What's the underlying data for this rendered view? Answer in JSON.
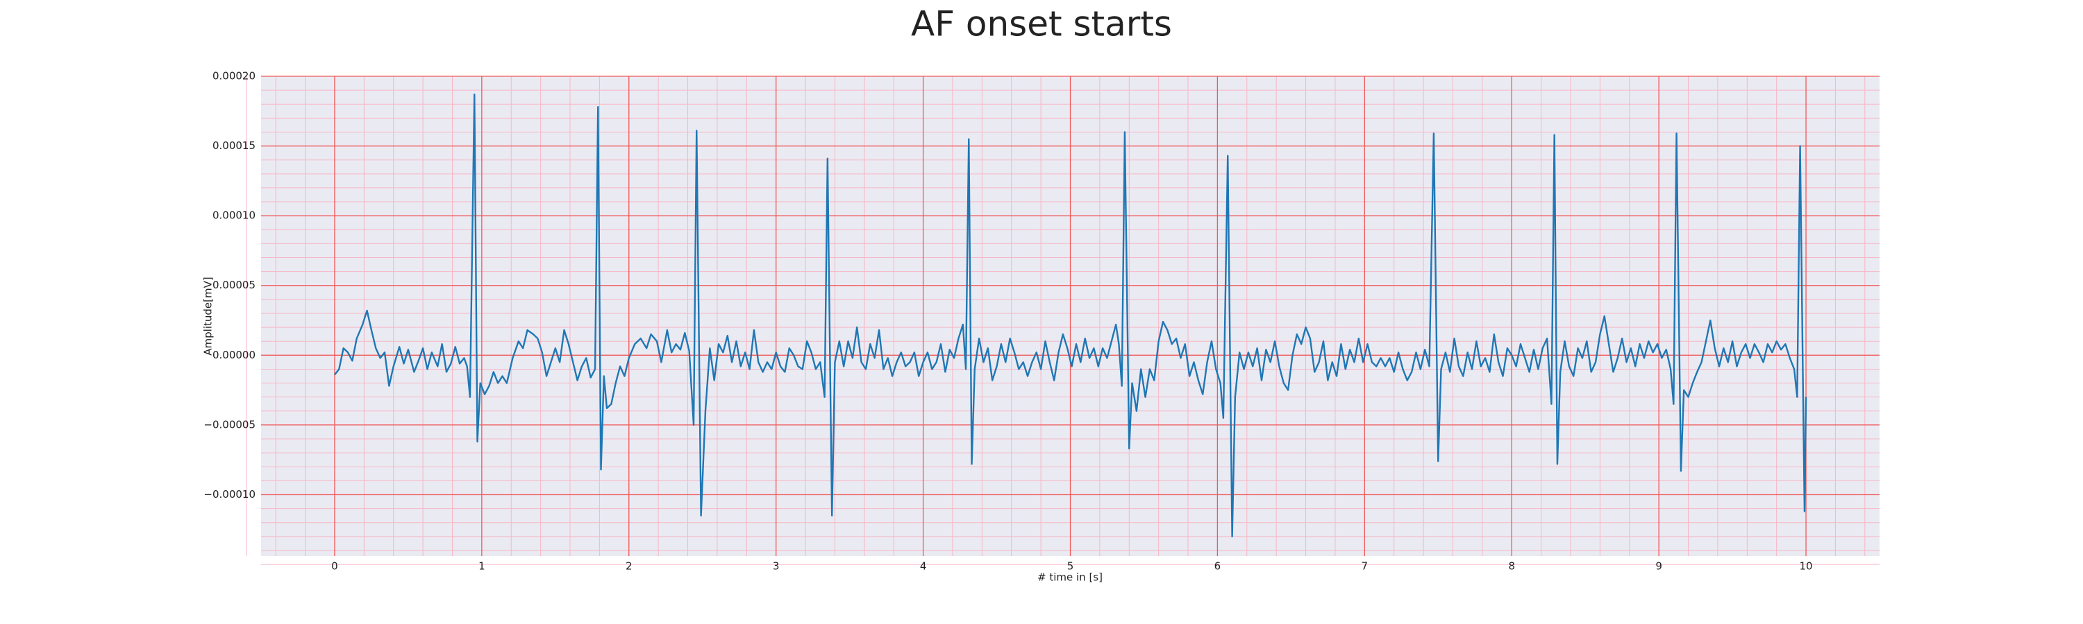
{
  "chart_data": {
    "type": "line",
    "title": "AF onset starts",
    "xlabel": "# time in [s]",
    "ylabel": "Amplitude[mV]",
    "color": "#1f77b4",
    "grid": true,
    "minor_grid": true,
    "xlim": [
      -0.5,
      10.5
    ],
    "xticks": [
      0,
      1,
      2,
      3,
      4,
      5,
      6,
      7,
      8,
      9,
      10
    ],
    "ylim": [
      -0.000144,
      0.0002
    ],
    "yticks": [
      {
        "value": -0.0001,
        "label": "−0.00010"
      },
      {
        "value": -5e-05,
        "label": "−0.00005"
      },
      {
        "value": 0,
        "label": "0.00000"
      },
      {
        "value": 5e-05,
        "label": "0.00005"
      },
      {
        "value": 0.0001,
        "label": "0.00010"
      },
      {
        "value": 0.00015,
        "label": "0.00015"
      },
      {
        "value": 0.0002,
        "label": "0.00020"
      }
    ],
    "x": [
      0.0,
      0.03,
      0.06,
      0.09,
      0.12,
      0.15,
      0.19,
      0.22,
      0.25,
      0.28,
      0.31,
      0.34,
      0.37,
      0.4,
      0.44,
      0.47,
      0.5,
      0.54,
      0.57,
      0.6,
      0.63,
      0.66,
      0.7,
      0.73,
      0.76,
      0.79,
      0.82,
      0.85,
      0.88,
      0.9,
      0.92,
      0.95,
      0.97,
      0.99,
      1.02,
      1.05,
      1.08,
      1.11,
      1.14,
      1.17,
      1.21,
      1.25,
      1.28,
      1.31,
      1.35,
      1.38,
      1.41,
      1.44,
      1.47,
      1.5,
      1.53,
      1.56,
      1.59,
      1.62,
      1.65,
      1.68,
      1.71,
      1.74,
      1.77,
      1.79,
      1.81,
      1.83,
      1.85,
      1.88,
      1.91,
      1.94,
      1.97,
      2.0,
      2.04,
      2.08,
      2.12,
      2.15,
      2.19,
      2.22,
      2.26,
      2.29,
      2.32,
      2.35,
      2.38,
      2.41,
      2.44,
      2.46,
      2.49,
      2.52,
      2.55,
      2.58,
      2.61,
      2.64,
      2.67,
      2.7,
      2.73,
      2.76,
      2.79,
      2.82,
      2.85,
      2.88,
      2.91,
      2.94,
      2.97,
      3.0,
      3.03,
      3.06,
      3.09,
      3.12,
      3.15,
      3.18,
      3.21,
      3.24,
      3.27,
      3.3,
      3.33,
      3.35,
      3.38,
      3.4,
      3.43,
      3.46,
      3.49,
      3.52,
      3.55,
      3.58,
      3.61,
      3.64,
      3.67,
      3.7,
      3.73,
      3.76,
      3.79,
      3.82,
      3.85,
      3.88,
      3.91,
      3.94,
      3.97,
      4.0,
      4.03,
      4.06,
      4.09,
      4.12,
      4.15,
      4.18,
      4.21,
      4.24,
      4.27,
      4.29,
      4.31,
      4.33,
      4.35,
      4.38,
      4.41,
      4.44,
      4.47,
      4.5,
      4.53,
      4.56,
      4.59,
      4.62,
      4.65,
      4.68,
      4.71,
      4.74,
      4.77,
      4.8,
      4.83,
      4.86,
      4.89,
      4.92,
      4.95,
      4.98,
      5.01,
      5.04,
      5.07,
      5.1,
      5.13,
      5.16,
      5.19,
      5.22,
      5.25,
      5.28,
      5.31,
      5.33,
      5.35,
      5.37,
      5.4,
      5.42,
      5.45,
      5.48,
      5.51,
      5.54,
      5.57,
      5.6,
      5.63,
      5.66,
      5.69,
      5.72,
      5.75,
      5.78,
      5.81,
      5.84,
      5.87,
      5.9,
      5.93,
      5.96,
      5.99,
      6.02,
      6.04,
      6.07,
      6.1,
      6.12,
      6.15,
      6.18,
      6.21,
      6.24,
      6.27,
      6.3,
      6.33,
      6.36,
      6.39,
      6.42,
      6.45,
      6.48,
      6.51,
      6.54,
      6.57,
      6.6,
      6.63,
      6.66,
      6.69,
      6.72,
      6.75,
      6.78,
      6.81,
      6.84,
      6.87,
      6.9,
      6.93,
      6.96,
      6.99,
      7.02,
      7.05,
      7.08,
      7.11,
      7.14,
      7.17,
      7.2,
      7.23,
      7.26,
      7.29,
      7.32,
      7.35,
      7.38,
      7.41,
      7.44,
      7.47,
      7.5,
      7.52,
      7.55,
      7.58,
      7.61,
      7.64,
      7.67,
      7.7,
      7.73,
      7.76,
      7.79,
      7.82,
      7.85,
      7.88,
      7.91,
      7.94,
      7.97,
      8.0,
      8.03,
      8.06,
      8.09,
      8.12,
      8.15,
      8.18,
      8.21,
      8.24,
      8.27,
      8.29,
      8.31,
      8.33,
      8.36,
      8.39,
      8.42,
      8.45,
      8.48,
      8.51,
      8.54,
      8.57,
      8.6,
      8.63,
      8.66,
      8.69,
      8.72,
      8.75,
      8.78,
      8.81,
      8.84,
      8.87,
      8.9,
      8.93,
      8.96,
      8.99,
      9.02,
      9.05,
      9.08,
      9.1,
      9.12,
      9.15,
      9.17,
      9.2,
      9.23,
      9.26,
      9.29,
      9.32,
      9.35,
      9.38,
      9.41,
      9.44,
      9.47,
      9.5,
      9.53,
      9.56,
      9.59,
      9.62,
      9.65,
      9.68,
      9.71,
      9.74,
      9.77,
      9.8,
      9.83,
      9.86,
      9.89,
      9.92,
      9.94,
      9.96,
      9.99,
      10.0
    ],
    "values": [
      -1.4e-05,
      -1e-05,
      5e-06,
      2e-06,
      -4e-06,
      1.2e-05,
      2.2e-05,
      3.2e-05,
      1.8e-05,
      5e-06,
      -2e-06,
      2e-06,
      -2.2e-05,
      -8e-06,
      6e-06,
      -6e-06,
      4e-06,
      -1.2e-05,
      -4e-06,
      5e-06,
      -1e-05,
      2e-06,
      -8e-06,
      8e-06,
      -1.2e-05,
      -6e-06,
      6e-06,
      -6e-06,
      -2e-06,
      -8e-06,
      -3e-05,
      0.000187,
      -6.2e-05,
      -2e-05,
      -2.8e-05,
      -2.2e-05,
      -1.2e-05,
      -2e-05,
      -1.5e-05,
      -2e-05,
      -2e-06,
      1e-05,
      5e-06,
      1.8e-05,
      1.5e-05,
      1.2e-05,
      2e-06,
      -1.5e-05,
      -5e-06,
      5e-06,
      -5e-06,
      1.8e-05,
      8e-06,
      -5e-06,
      -1.8e-05,
      -8e-06,
      -2e-06,
      -1.6e-05,
      -1e-05,
      0.000178,
      -8.2e-05,
      -1.5e-05,
      -3.8e-05,
      -3.5e-05,
      -2e-05,
      -8e-06,
      -1.5e-05,
      -2e-06,
      8e-06,
      1.2e-05,
      5e-06,
      1.5e-05,
      1e-05,
      -5e-06,
      1.8e-05,
      2e-06,
      8e-06,
      4e-06,
      1.6e-05,
      3e-06,
      -5e-05,
      0.000161,
      -0.000115,
      -4e-05,
      5e-06,
      -1.8e-05,
      8e-06,
      2e-06,
      1.4e-05,
      -5e-06,
      1e-05,
      -8e-06,
      2e-06,
      -1e-05,
      1.8e-05,
      -5e-06,
      -1.2e-05,
      -5e-06,
      -1e-05,
      2e-06,
      -8e-06,
      -1.2e-05,
      5e-06,
      0,
      -8e-06,
      -1e-05,
      1e-05,
      2e-06,
      -1e-05,
      -5e-06,
      -3e-05,
      0.000141,
      -0.000115,
      -5e-06,
      1e-05,
      -8e-06,
      1e-05,
      -2e-06,
      2e-05,
      -5e-06,
      -1e-05,
      8e-06,
      -2e-06,
      1.8e-05,
      -1e-05,
      -2e-06,
      -1.5e-05,
      -5e-06,
      2e-06,
      -8e-06,
      -5e-06,
      2e-06,
      -1.5e-05,
      -5e-06,
      2e-06,
      -1e-05,
      -5e-06,
      8e-06,
      -1.2e-05,
      4e-06,
      -2e-06,
      1.2e-05,
      2.2e-05,
      -1e-05,
      0.000155,
      -7.8e-05,
      -1e-05,
      1.2e-05,
      -5e-06,
      5e-06,
      -1.8e-05,
      -8e-06,
      8e-06,
      -5e-06,
      1.2e-05,
      2e-06,
      -1e-05,
      -5e-06,
      -1.5e-05,
      -5e-06,
      2e-06,
      -1e-05,
      1e-05,
      -5e-06,
      -1.8e-05,
      2e-06,
      1.5e-05,
      5e-06,
      -8e-06,
      8e-06,
      -5e-06,
      1.2e-05,
      -2e-06,
      5e-06,
      -8e-06,
      5e-06,
      -2e-06,
      1e-05,
      2.2e-05,
      8e-06,
      -2.2e-05,
      0.00016,
      -6.7e-05,
      -2e-05,
      -4e-05,
      -1e-05,
      -3e-05,
      -1e-05,
      -1.8e-05,
      1e-05,
      2.4e-05,
      1.8e-05,
      8e-06,
      1.2e-05,
      -2e-06,
      8e-06,
      -1.5e-05,
      -5e-06,
      -1.8e-05,
      -2.8e-05,
      -5e-06,
      1e-05,
      -1e-05,
      -2e-05,
      -4.5e-05,
      0.000143,
      -0.00013,
      -3e-05,
      2e-06,
      -1e-05,
      2e-06,
      -8e-06,
      5e-06,
      -1.8e-05,
      4e-06,
      -5e-06,
      1e-05,
      -8e-06,
      -2e-05,
      -2.5e-05,
      0,
      1.5e-05,
      8e-06,
      2e-05,
      1.2e-05,
      -1.2e-05,
      -5e-06,
      1e-05,
      -1.8e-05,
      -5e-06,
      -1.5e-05,
      8e-06,
      -1e-05,
      4e-06,
      -5e-06,
      1.2e-05,
      -5e-06,
      8e-06,
      -5e-06,
      -8e-06,
      -2e-06,
      -8e-06,
      -2e-06,
      -1.2e-05,
      2e-06,
      -1e-05,
      -1.8e-05,
      -1.2e-05,
      2e-06,
      -1e-05,
      4e-06,
      -8e-06,
      0.000159,
      -7.6e-05,
      -1e-05,
      2e-06,
      -1.2e-05,
      1.2e-05,
      -8e-06,
      -1.5e-05,
      2e-06,
      -1e-05,
      1e-05,
      -8e-06,
      -2e-06,
      -1.2e-05,
      1.5e-05,
      -5e-06,
      -1.5e-05,
      5e-06,
      0,
      -8e-06,
      8e-06,
      -2e-06,
      -1.2e-05,
      4e-06,
      -1e-05,
      5e-06,
      1.2e-05,
      -3.5e-05,
      0.000158,
      -7.8e-05,
      -1.2e-05,
      1e-05,
      -8e-06,
      -1.5e-05,
      5e-06,
      -2e-06,
      1e-05,
      -1.2e-05,
      -5e-06,
      1.5e-05,
      2.8e-05,
      8e-06,
      -1.2e-05,
      -2e-06,
      1.2e-05,
      -5e-06,
      5e-06,
      -8e-06,
      8e-06,
      -2e-06,
      1e-05,
      2e-06,
      8e-06,
      -2e-06,
      4e-06,
      -1e-05,
      -3.5e-05,
      0.000159,
      -8.3e-05,
      -2.5e-05,
      -3e-05,
      -2e-05,
      -1.2e-05,
      -5e-06,
      1e-05,
      2.5e-05,
      5e-06,
      -8e-06,
      5e-06,
      -5e-06,
      1e-05,
      -8e-06,
      2e-06,
      8e-06,
      -2e-06,
      8e-06,
      2e-06,
      -5e-06,
      8e-06,
      2e-06,
      1e-05,
      4e-06,
      8e-06,
      -2e-06,
      -1e-05,
      -3e-05,
      0.00015,
      -0.000112,
      -3e-05
    ]
  }
}
